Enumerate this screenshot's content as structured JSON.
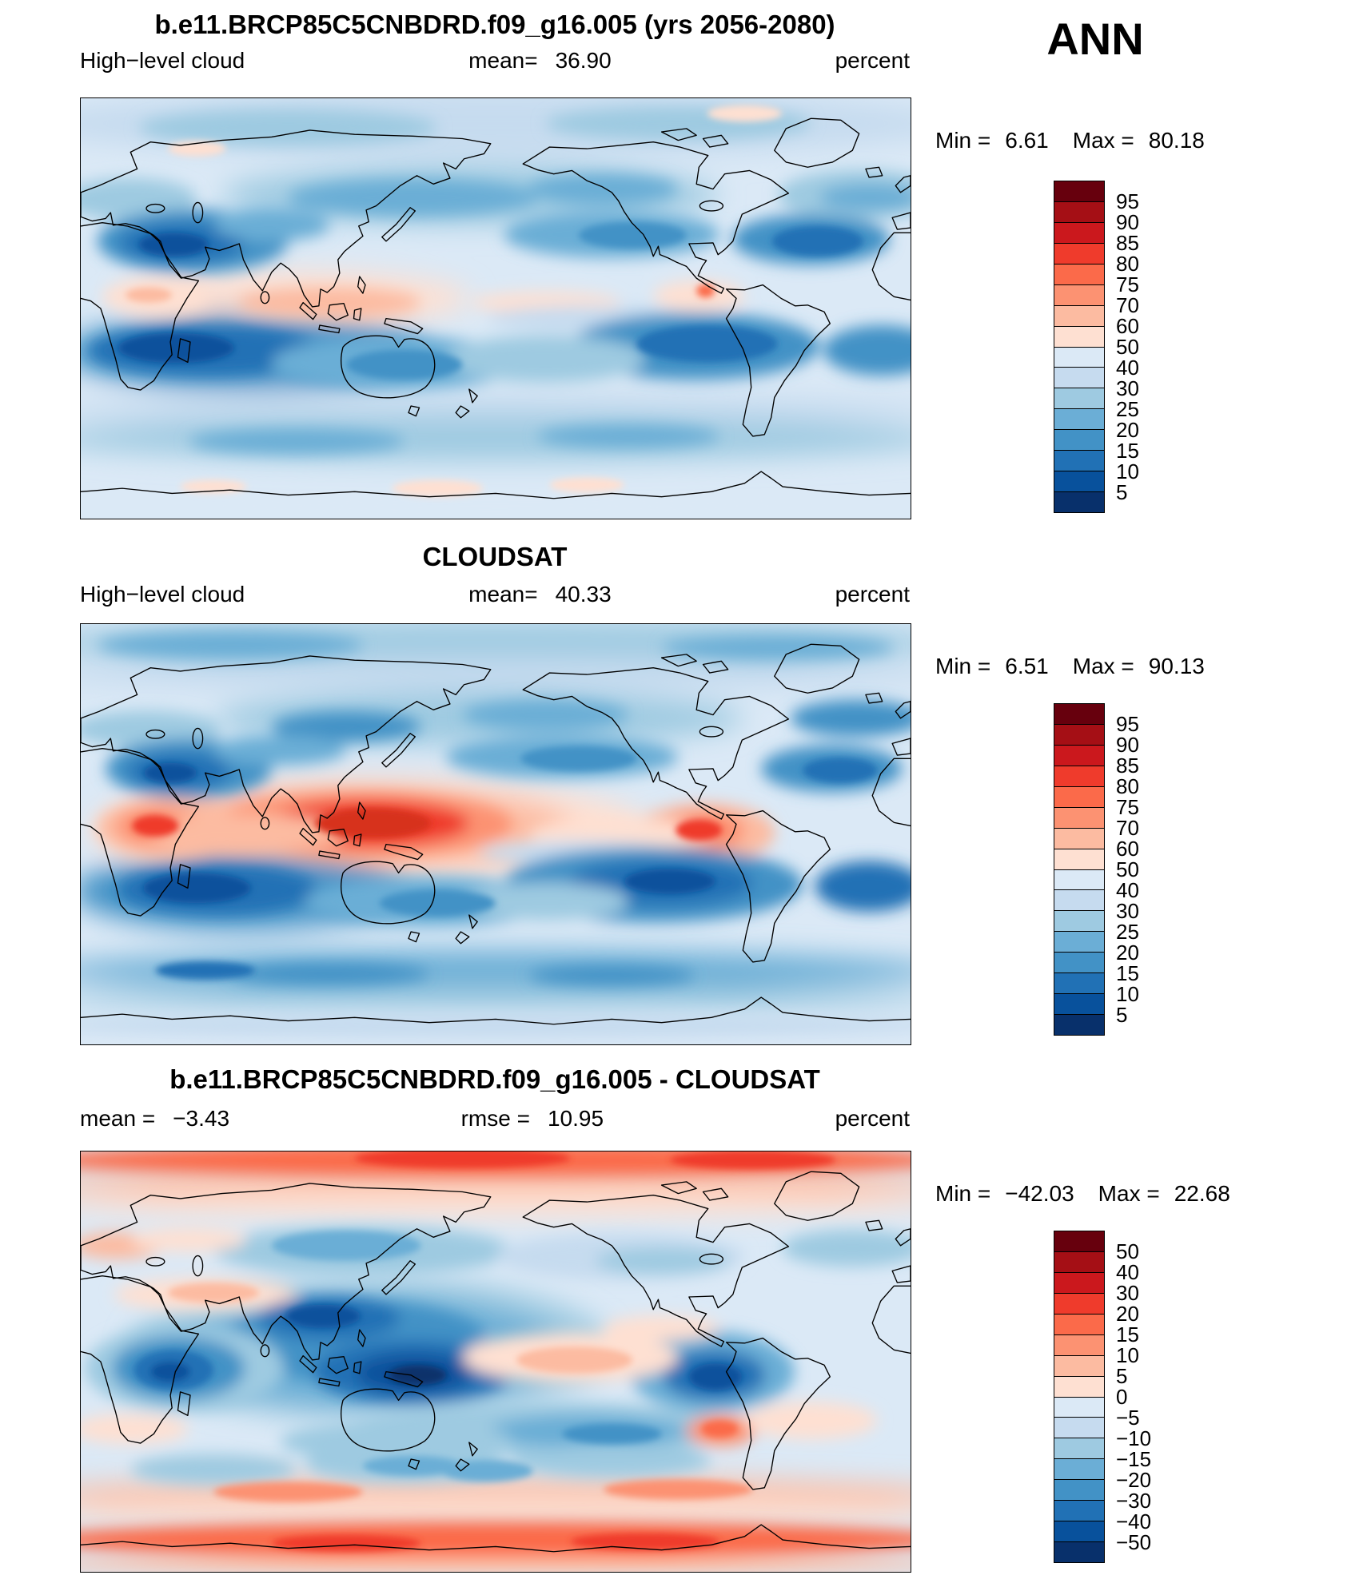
{
  "season": "ANN",
  "chart_data": {
    "type": "heatmap",
    "subtype": "global latitude-longitude filled contour maps (3-panel model vs observation comparison)",
    "panels": [
      {
        "id": "model",
        "title": "b.e11.BRCP85C5CNBDRD.f09_g16.005 (yrs 2056-2080)",
        "variable": "High−level cloud",
        "units": "percent",
        "mean_label": "mean=",
        "mean": "36.90",
        "min_label": "Min =",
        "min": "6.61",
        "max_label": "Max =",
        "max": "80.18",
        "colorbar": {
          "levels": [
            "95",
            "90",
            "85",
            "80",
            "75",
            "70",
            "60",
            "50",
            "40",
            "30",
            "25",
            "20",
            "15",
            "10",
            "5"
          ],
          "colors": [
            "#67000d",
            "#a50f15",
            "#cb181d",
            "#ef3b2c",
            "#fb6a4a",
            "#fc9272",
            "#fcbba1",
            "#fee0d2",
            "#dbe9f6",
            "#c6dbef",
            "#9ecae1",
            "#6baed6",
            "#4292c6",
            "#2171b5",
            "#08519c",
            "#08306b"
          ]
        }
      },
      {
        "id": "observation",
        "title": "CLOUDSAT",
        "variable": "High−level cloud",
        "units": "percent",
        "mean_label": "mean=",
        "mean": "40.33",
        "min_label": "Min =",
        "min": "6.51",
        "max_label": "Max =",
        "max": "90.13",
        "colorbar": {
          "levels": [
            "95",
            "90",
            "85",
            "80",
            "75",
            "70",
            "60",
            "50",
            "40",
            "30",
            "25",
            "20",
            "15",
            "10",
            "5"
          ],
          "colors": [
            "#67000d",
            "#a50f15",
            "#cb181d",
            "#ef3b2c",
            "#fb6a4a",
            "#fc9272",
            "#fcbba1",
            "#fee0d2",
            "#dbe9f6",
            "#c6dbef",
            "#9ecae1",
            "#6baed6",
            "#4292c6",
            "#2171b5",
            "#08519c",
            "#08306b"
          ]
        }
      },
      {
        "id": "difference",
        "title": "b.e11.BRCP85C5CNBDRD.f09_g16.005 - CLOUDSAT",
        "units": "percent",
        "mean_label": "mean =",
        "mean": "−3.43",
        "rmse_label": "rmse =",
        "rmse": "10.95",
        "min_label": "Min =",
        "min": "−42.03",
        "max_label": "Max =",
        "max": "22.68",
        "colorbar": {
          "levels": [
            "50",
            "40",
            "30",
            "20",
            "15",
            "10",
            "5",
            "0",
            "−5",
            "−10",
            "−15",
            "−20",
            "−30",
            "−40",
            "−50"
          ],
          "colors": [
            "#67000d",
            "#a50f15",
            "#cb181d",
            "#ef3b2c",
            "#fb6a4a",
            "#fc9272",
            "#fcbba1",
            "#fee0d2",
            "#dbe9f6",
            "#c6dbef",
            "#9ecae1",
            "#6baed6",
            "#4292c6",
            "#2171b5",
            "#08519c",
            "#08306b"
          ]
        }
      }
    ]
  }
}
